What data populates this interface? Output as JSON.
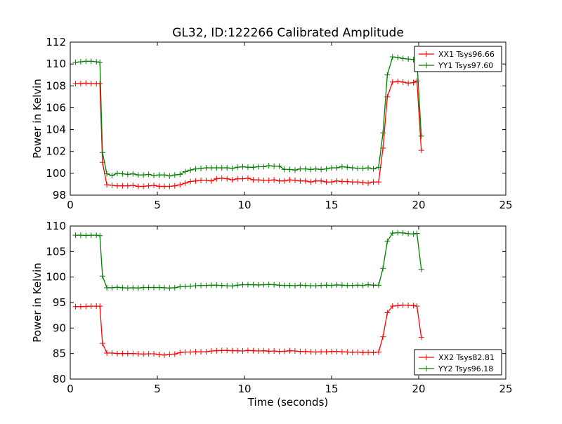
{
  "figure": {
    "title": "GL32, ID:122266 Calibrated Amplitude"
  },
  "chart_data": [
    {
      "type": "line",
      "title": "GL32, ID:122266 Calibrated Amplitude",
      "xlabel": "",
      "ylabel": "Power in Kelvin",
      "xlim": [
        0,
        25
      ],
      "ylim": [
        98,
        112
      ],
      "xticks": [
        0,
        5,
        10,
        15,
        20,
        25
      ],
      "yticks": [
        98,
        100,
        102,
        104,
        106,
        108,
        110,
        112
      ],
      "grid": false,
      "legend_position": "top-right",
      "x": [
        0.3,
        0.6,
        0.9,
        1.2,
        1.5,
        1.7,
        1.85,
        2.1,
        2.4,
        2.7,
        3.0,
        3.3,
        3.6,
        3.9,
        4.2,
        4.5,
        4.8,
        5.1,
        5.4,
        5.7,
        6.0,
        6.3,
        6.6,
        6.9,
        7.2,
        7.5,
        7.8,
        8.1,
        8.4,
        8.7,
        9.0,
        9.3,
        9.6,
        9.9,
        10.2,
        10.5,
        10.8,
        11.1,
        11.4,
        11.7,
        12.0,
        12.3,
        12.6,
        12.9,
        13.2,
        13.5,
        13.8,
        14.1,
        14.4,
        14.7,
        15.0,
        15.3,
        15.6,
        15.9,
        16.2,
        16.5,
        16.8,
        17.1,
        17.4,
        17.7,
        17.95,
        18.2,
        18.5,
        18.8,
        19.1,
        19.4,
        19.7,
        19.9,
        20.15
      ],
      "series": [
        {
          "name": "XX1 Tsys96.66",
          "color": "#ff0000",
          "values": [
            108.2,
            108.2,
            108.25,
            108.2,
            108.2,
            108.2,
            101.0,
            98.95,
            98.9,
            98.85,
            98.85,
            98.85,
            98.9,
            98.8,
            98.8,
            98.85,
            98.9,
            98.8,
            98.8,
            98.8,
            98.85,
            98.95,
            99.1,
            99.25,
            99.3,
            99.35,
            99.35,
            99.3,
            99.5,
            99.55,
            99.5,
            99.4,
            99.5,
            99.5,
            99.55,
            99.4,
            99.4,
            99.35,
            99.35,
            99.4,
            99.3,
            99.3,
            99.4,
            99.35,
            99.3,
            99.3,
            99.2,
            99.3,
            99.3,
            99.2,
            99.2,
            99.3,
            99.25,
            99.25,
            99.2,
            99.2,
            99.15,
            99.1,
            99.2,
            99.2,
            102.3,
            107.0,
            108.35,
            108.4,
            108.35,
            108.25,
            108.3,
            108.45,
            102.1
          ]
        },
        {
          "name": "YY1 Tsys97.60",
          "color": "#008000",
          "values": [
            110.15,
            110.2,
            110.25,
            110.25,
            110.2,
            110.15,
            101.9,
            99.95,
            99.8,
            100.0,
            99.95,
            99.9,
            99.95,
            99.85,
            99.85,
            99.9,
            99.8,
            99.85,
            99.85,
            99.75,
            99.85,
            99.9,
            100.15,
            100.3,
            100.4,
            100.45,
            100.5,
            100.5,
            100.5,
            100.5,
            100.5,
            100.45,
            100.55,
            100.6,
            100.55,
            100.55,
            100.6,
            100.6,
            100.7,
            100.65,
            100.65,
            100.35,
            100.35,
            100.3,
            100.4,
            100.4,
            100.35,
            100.4,
            100.35,
            100.4,
            100.5,
            100.5,
            100.6,
            100.55,
            100.5,
            100.45,
            100.45,
            100.5,
            100.4,
            100.55,
            103.7,
            109.0,
            110.65,
            110.6,
            110.5,
            110.45,
            110.4,
            110.35,
            103.4
          ]
        }
      ]
    },
    {
      "type": "line",
      "title": "",
      "xlabel": "Time (seconds)",
      "ylabel": "Power in Kelvin",
      "xlim": [
        0,
        25
      ],
      "ylim": [
        80,
        110
      ],
      "xticks": [
        0,
        5,
        10,
        15,
        20,
        25
      ],
      "yticks": [
        80,
        85,
        90,
        95,
        100,
        105,
        110
      ],
      "grid": false,
      "legend_position": "bottom-right",
      "x": [
        0.3,
        0.6,
        0.9,
        1.2,
        1.5,
        1.7,
        1.85,
        2.1,
        2.4,
        2.7,
        3.0,
        3.3,
        3.6,
        3.9,
        4.2,
        4.5,
        4.8,
        5.1,
        5.4,
        5.7,
        6.0,
        6.3,
        6.6,
        6.9,
        7.2,
        7.5,
        7.8,
        8.1,
        8.4,
        8.7,
        9.0,
        9.3,
        9.6,
        9.9,
        10.2,
        10.5,
        10.8,
        11.1,
        11.4,
        11.7,
        12.0,
        12.3,
        12.6,
        12.9,
        13.2,
        13.5,
        13.8,
        14.1,
        14.4,
        14.7,
        15.0,
        15.3,
        15.6,
        15.9,
        16.2,
        16.5,
        16.8,
        17.1,
        17.4,
        17.7,
        17.95,
        18.2,
        18.5,
        18.8,
        19.1,
        19.4,
        19.7,
        19.9,
        20.15
      ],
      "series": [
        {
          "name": "XX2 Tsys82.81",
          "color": "#ff0000",
          "values": [
            94.2,
            94.2,
            94.25,
            94.3,
            94.3,
            94.3,
            87.0,
            85.1,
            85.1,
            85.0,
            85.0,
            85.0,
            85.0,
            84.95,
            84.9,
            84.95,
            84.95,
            84.8,
            84.7,
            84.85,
            84.9,
            85.2,
            85.3,
            85.3,
            85.35,
            85.35,
            85.35,
            85.5,
            85.55,
            85.6,
            85.6,
            85.55,
            85.55,
            85.5,
            85.6,
            85.55,
            85.5,
            85.55,
            85.45,
            85.5,
            85.4,
            85.45,
            85.55,
            85.5,
            85.4,
            85.4,
            85.35,
            85.3,
            85.35,
            85.35,
            85.4,
            85.4,
            85.35,
            85.3,
            85.25,
            85.3,
            85.2,
            85.25,
            85.2,
            85.3,
            88.3,
            93.0,
            94.3,
            94.4,
            94.5,
            94.45,
            94.4,
            94.3,
            88.2
          ]
        },
        {
          "name": "YY2 Tsys96.18",
          "color": "#008000",
          "values": [
            108.2,
            108.2,
            108.15,
            108.2,
            108.2,
            108.1,
            100.2,
            97.9,
            97.9,
            98.0,
            97.9,
            97.85,
            97.9,
            97.85,
            97.95,
            97.95,
            97.95,
            97.95,
            97.9,
            97.85,
            97.9,
            98.1,
            98.15,
            98.2,
            98.3,
            98.35,
            98.35,
            98.4,
            98.4,
            98.35,
            98.3,
            98.25,
            98.4,
            98.5,
            98.5,
            98.5,
            98.45,
            98.5,
            98.55,
            98.5,
            98.4,
            98.35,
            98.35,
            98.3,
            98.4,
            98.35,
            98.3,
            98.3,
            98.35,
            98.4,
            98.35,
            98.45,
            98.4,
            98.35,
            98.35,
            98.4,
            98.35,
            98.5,
            98.4,
            98.4,
            101.7,
            107.0,
            108.6,
            108.7,
            108.65,
            108.5,
            108.45,
            108.55,
            101.5
          ]
        }
      ]
    }
  ]
}
